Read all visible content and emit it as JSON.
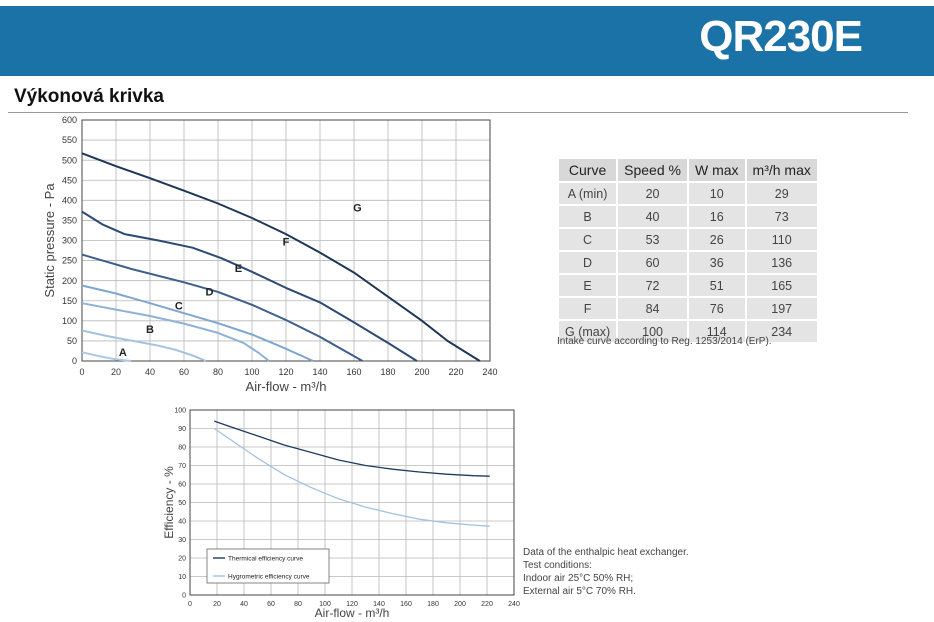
{
  "header": {
    "title": "QR230E"
  },
  "section": {
    "title": "Výkonová krivka"
  },
  "spec_table": {
    "headers": [
      "Curve",
      "Speed %",
      "W max",
      "m³/h max"
    ],
    "rows": [
      [
        "A (min)",
        "20",
        "10",
        "29"
      ],
      [
        "B",
        "40",
        "16",
        "73"
      ],
      [
        "C",
        "53",
        "26",
        "110"
      ],
      [
        "D",
        "60",
        "36",
        "136"
      ],
      [
        "E",
        "72",
        "51",
        "165"
      ],
      [
        "F",
        "84",
        "76",
        "197"
      ],
      [
        "G (max)",
        "100",
        "114",
        "234"
      ]
    ],
    "note": "Intake curve according to Reg. 1253/2014 (ErP)."
  },
  "conditions": {
    "lines": [
      "Data of the enthalpic heat exchanger.",
      "Test conditions:",
      "Indoor air 25°C 50% RH;",
      "External air 5°C 70% RH."
    ]
  },
  "chart_data": [
    {
      "type": "line",
      "xlabel": "Air-flow - m³/h",
      "ylabel": "Static pressure - Pa",
      "xlim": [
        0,
        240
      ],
      "ylim": [
        0,
        600
      ],
      "xticks": [
        "0",
        "20",
        "40",
        "60",
        "80",
        "100",
        "120",
        "140",
        "160",
        "180",
        "200",
        "220",
        "240"
      ],
      "yticks": [
        "0",
        "50",
        "100",
        "150",
        "200",
        "250",
        "300",
        "350",
        "400",
        "450",
        "500",
        "550",
        "600"
      ],
      "grid": true,
      "series": [
        {
          "name": "A",
          "color": "#a9c8e6",
          "points": [
            [
              0,
              22
            ],
            [
              10,
              12
            ],
            [
              20,
              4
            ],
            [
              29,
              0
            ]
          ]
        },
        {
          "name": "B",
          "color": "#a3c2e0",
          "points": [
            [
              0,
              76
            ],
            [
              15,
              62
            ],
            [
              30,
              50
            ],
            [
              45,
              38
            ],
            [
              55,
              28
            ],
            [
              65,
              14
            ],
            [
              73,
              0
            ]
          ]
        },
        {
          "name": "C",
          "color": "#8eb2d8",
          "points": [
            [
              0,
              144
            ],
            [
              20,
              128
            ],
            [
              40,
              112
            ],
            [
              60,
              93
            ],
            [
              80,
              70
            ],
            [
              95,
              45
            ],
            [
              104,
              20
            ],
            [
              110,
              0
            ]
          ]
        },
        {
          "name": "D",
          "color": "#7ea6d1",
          "points": [
            [
              0,
              188
            ],
            [
              20,
              168
            ],
            [
              40,
              144
            ],
            [
              60,
              119
            ],
            [
              80,
              94
            ],
            [
              100,
              66
            ],
            [
              118,
              34
            ],
            [
              136,
              0
            ]
          ]
        },
        {
          "name": "E",
          "color": "#3d5f8c",
          "points": [
            [
              0,
              265
            ],
            [
              30,
              228
            ],
            [
              60,
              196
            ],
            [
              80,
              172
            ],
            [
              100,
              140
            ],
            [
              120,
              102
            ],
            [
              140,
              60
            ],
            [
              165,
              0
            ]
          ]
        },
        {
          "name": "F",
          "color": "#2c4a74",
          "points": [
            [
              0,
              372
            ],
            [
              12,
              340
            ],
            [
              25,
              316
            ],
            [
              45,
              300
            ],
            [
              65,
              282
            ],
            [
              82,
              256
            ],
            [
              100,
              222
            ],
            [
              120,
              182
            ],
            [
              140,
              146
            ],
            [
              160,
              96
            ],
            [
              180,
              45
            ],
            [
              197,
              0
            ]
          ]
        },
        {
          "name": "G",
          "color": "#1e3756",
          "points": [
            [
              0,
              517
            ],
            [
              20,
              485
            ],
            [
              40,
              455
            ],
            [
              60,
              424
            ],
            [
              80,
              392
            ],
            [
              100,
              356
            ],
            [
              120,
              316
            ],
            [
              140,
              270
            ],
            [
              160,
              220
            ],
            [
              180,
              160
            ],
            [
              200,
              100
            ],
            [
              215,
              50
            ],
            [
              234,
              0
            ]
          ]
        }
      ]
    },
    {
      "type": "line",
      "xlabel": "Air-flow - m³/h",
      "ylabel": "Efficiency - %",
      "xlim": [
        0,
        240
      ],
      "ylim": [
        0,
        100
      ],
      "xticks": [
        "0",
        "20",
        "40",
        "60",
        "80",
        "100",
        "120",
        "140",
        "160",
        "180",
        "200",
        "220",
        "240"
      ],
      "yticks": [
        "0",
        "10",
        "20",
        "30",
        "40",
        "50",
        "60",
        "70",
        "80",
        "90",
        "100"
      ],
      "grid": true,
      "legend": "bottom-left",
      "series": [
        {
          "name": "Thermical efficiency curve",
          "color": "#1f3a5c",
          "points": [
            [
              18,
              94
            ],
            [
              30,
              91
            ],
            [
              50,
              86
            ],
            [
              70,
              81
            ],
            [
              90,
              77
            ],
            [
              110,
              73
            ],
            [
              130,
              70
            ],
            [
              150,
              68
            ],
            [
              170,
              66.5
            ],
            [
              190,
              65.3
            ],
            [
              210,
              64.5
            ],
            [
              222,
              64.2
            ]
          ]
        },
        {
          "name": "Hygrometric efficiency curve",
          "color": "#a3c2e0",
          "points": [
            [
              18,
              90
            ],
            [
              30,
              84
            ],
            [
              50,
              74
            ],
            [
              70,
              65
            ],
            [
              90,
              58
            ],
            [
              110,
              52
            ],
            [
              130,
              47.5
            ],
            [
              150,
              44
            ],
            [
              170,
              41
            ],
            [
              190,
              39
            ],
            [
              210,
              37.8
            ],
            [
              222,
              37.2
            ]
          ]
        }
      ]
    }
  ]
}
